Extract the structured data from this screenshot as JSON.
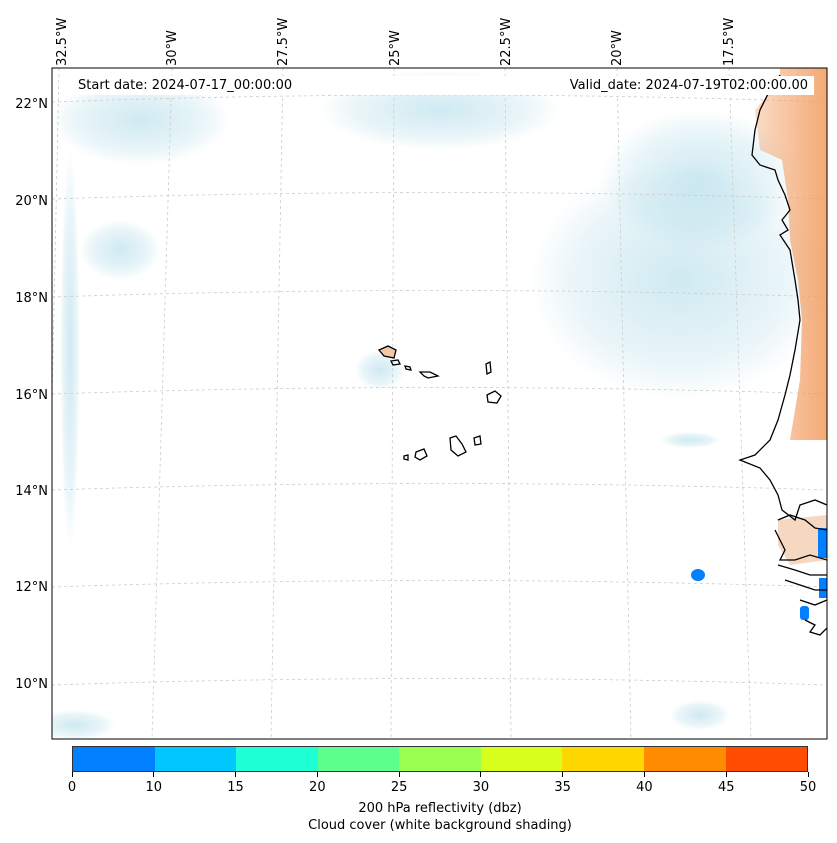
{
  "map": {
    "longitude_labels": [
      "32.5°W",
      "30°W",
      "27.5°W",
      "25°W",
      "22.5°W",
      "20°W",
      "17.5°W"
    ],
    "latitude_labels": [
      "22°N",
      "20°N",
      "18°N",
      "16°N",
      "14°N",
      "12°N",
      "10°N"
    ],
    "start_date": "Start date: 2024-07-17_00:00:00",
    "valid_date": "Valid_date: 2024-07-19T02:00:00.00",
    "cloud_color": "#a8d8e6",
    "warm_color": "#f29a5c",
    "coast_color": "#000000",
    "grid_color": "#cccccc"
  },
  "colorbar": {
    "ticks": [
      "0",
      "10",
      "15",
      "20",
      "25",
      "30",
      "35",
      "40",
      "45",
      "50"
    ],
    "colors": [
      "#0080ff",
      "#00c8ff",
      "#1fffd6",
      "#5cff8c",
      "#9bff52",
      "#d8ff1c",
      "#ffd700",
      "#ff8c00",
      "#ff4c00"
    ],
    "label": "200 hPa reflectivity (dbz)",
    "sublabel": "Cloud cover (white background shading)"
  },
  "chart_data": {
    "type": "heatmap",
    "title": "",
    "variable": "200 hPa reflectivity (dbz)",
    "overlay": "Cloud cover (white background shading)",
    "start_date": "2024-07-17_00:00:00",
    "valid_date": "2024-07-19T02:00:00.00",
    "lon_range": [
      -32.8,
      -15.3
    ],
    "lat_range": [
      8.9,
      22.8
    ],
    "colorbar_bounds": [
      0,
      10,
      15,
      20,
      25,
      30,
      35,
      40,
      45,
      50
    ],
    "reflectivity_cells": [
      {
        "lon": -18.6,
        "lat": 12.3,
        "dbz": 5
      },
      {
        "lon": -16.1,
        "lat": 11.5,
        "dbz": 5
      },
      {
        "lon": -15.4,
        "lat": 12.8,
        "dbz": 5
      },
      {
        "lon": -15.4,
        "lat": 12.1,
        "dbz": 5
      }
    ]
  }
}
